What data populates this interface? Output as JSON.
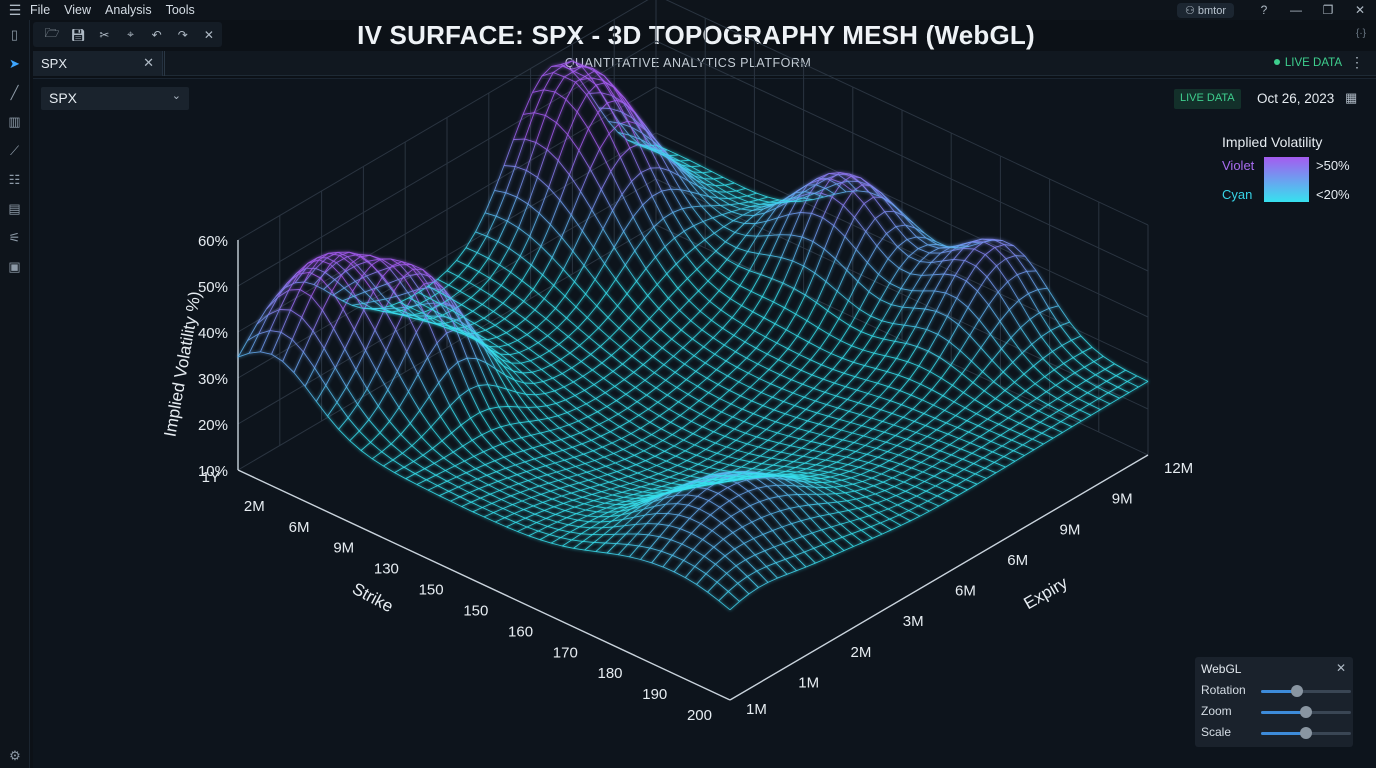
{
  "menu": {
    "items": [
      "File",
      "View",
      "Analysis",
      "Tools"
    ]
  },
  "window": {
    "user": "bmtor"
  },
  "header": {
    "title": "IV SURFACE: SPX - 3D TOPOGRAPHY MESH (WebGL)",
    "subtitle": "QUANTITATIVE ANALYTICS PLATFORM",
    "live_label": "LIVE DATA"
  },
  "tab": {
    "label": "SPX"
  },
  "controls": {
    "symbol_select": "SPX",
    "live_badge": "LIVE DATA",
    "date": "Oct 26, 2023"
  },
  "legend": {
    "title": "Implied Volatility",
    "violet_label": "Violet",
    "cyan_label": "Cyan",
    "high_label": ">50%",
    "low_label": "<20%"
  },
  "chart_data": {
    "type": "surface",
    "zlabel": "Implied Volatility %)",
    "xlabel": "Strike",
    "ylabel": "Expiry",
    "z_ticks": [
      "60%",
      "50%",
      "40%",
      "30%",
      "20%",
      "10%"
    ],
    "strike_ticks": [
      "1Y",
      "2M",
      "6M",
      "9M",
      "130",
      "150",
      "150",
      "160",
      "170",
      "180",
      "190",
      "200"
    ],
    "expiry_ticks": [
      "12M",
      "9M",
      "9M",
      "6M",
      "6M",
      "3M",
      "2M",
      "1M",
      "1M"
    ],
    "z_range": [
      10,
      60
    ],
    "colors": {
      "low": "#36e2ef",
      "high": "#a45cf0"
    }
  },
  "webgl_panel": {
    "title": "WebGL",
    "sliders": [
      {
        "label": "Rotation",
        "value": 0.4
      },
      {
        "label": "Zoom",
        "value": 0.5
      },
      {
        "label": "Scale",
        "value": 0.5
      }
    ]
  }
}
